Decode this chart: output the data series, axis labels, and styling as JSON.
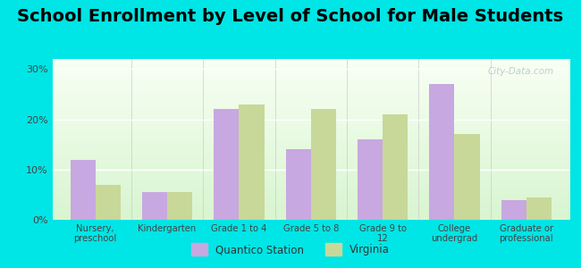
{
  "title": "School Enrollment by Level of School for Male Students",
  "categories": [
    "Nursery,\npreschool",
    "Kindergarten",
    "Grade 1 to 4",
    "Grade 5 to 8",
    "Grade 9 to\n12",
    "College\nundergrad",
    "Graduate or\nprofessional"
  ],
  "quantico_values": [
    12,
    5.5,
    22,
    14,
    16,
    27,
    4
  ],
  "virginia_values": [
    7,
    5.5,
    23,
    22,
    21,
    17,
    4.5
  ],
  "quantico_color": "#c8a8e0",
  "virginia_color": "#c8d898",
  "background_color": "#00e5e5",
  "ylabel_ticks": [
    "0%",
    "10%",
    "20%",
    "30%"
  ],
  "ytick_vals": [
    0,
    10,
    20,
    30
  ],
  "ylim": [
    0,
    32
  ],
  "legend_labels": [
    "Quantico Station",
    "Virginia"
  ],
  "title_fontsize": 14,
  "bar_width": 0.35,
  "watermark": "City-Data.com"
}
